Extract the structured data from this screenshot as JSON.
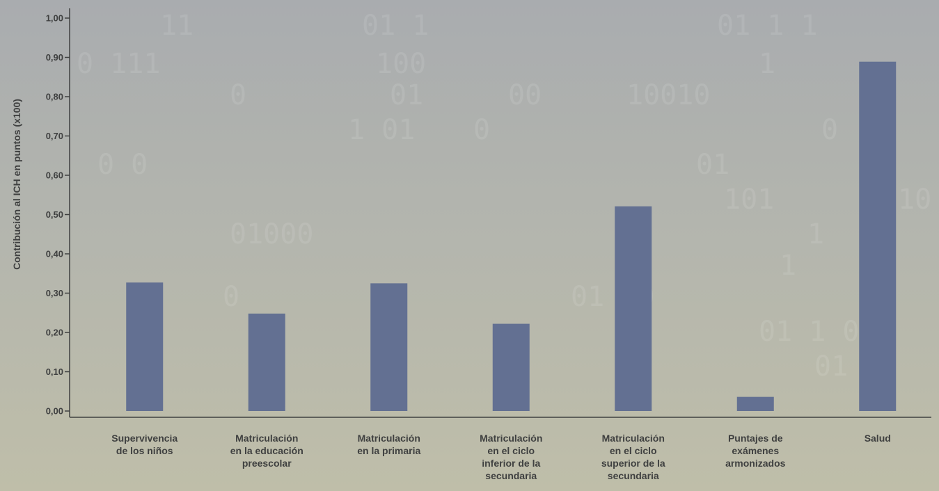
{
  "chart_data": {
    "type": "bar",
    "ylabel": "Contribución al ICH en puntos (x100)",
    "ylim": [
      0,
      1.0
    ],
    "yticks": [
      "0,00",
      "0,10",
      "0,20",
      "0,30",
      "0,40",
      "0,50",
      "0,60",
      "0,70",
      "0,80",
      "0,90",
      "1,00"
    ],
    "categories": [
      [
        "Supervivencia",
        "de los niños"
      ],
      [
        "Matriculación",
        "en la educación",
        "preescolar"
      ],
      [
        "Matriculación",
        "en la primaria"
      ],
      [
        "Matriculación",
        "en el ciclo",
        "inferior de la",
        "secundaria"
      ],
      [
        "Matriculación",
        "en el ciclo",
        "superior de la",
        "secundaria"
      ],
      [
        "Puntajes de",
        "exámenes",
        "armonizados"
      ],
      [
        "Salud"
      ]
    ],
    "values": [
      0.327,
      0.248,
      0.325,
      0.222,
      0.521,
      0.036,
      0.889
    ],
    "bar_color": "#637092",
    "axis_color": "#3f4040",
    "grid": false
  }
}
